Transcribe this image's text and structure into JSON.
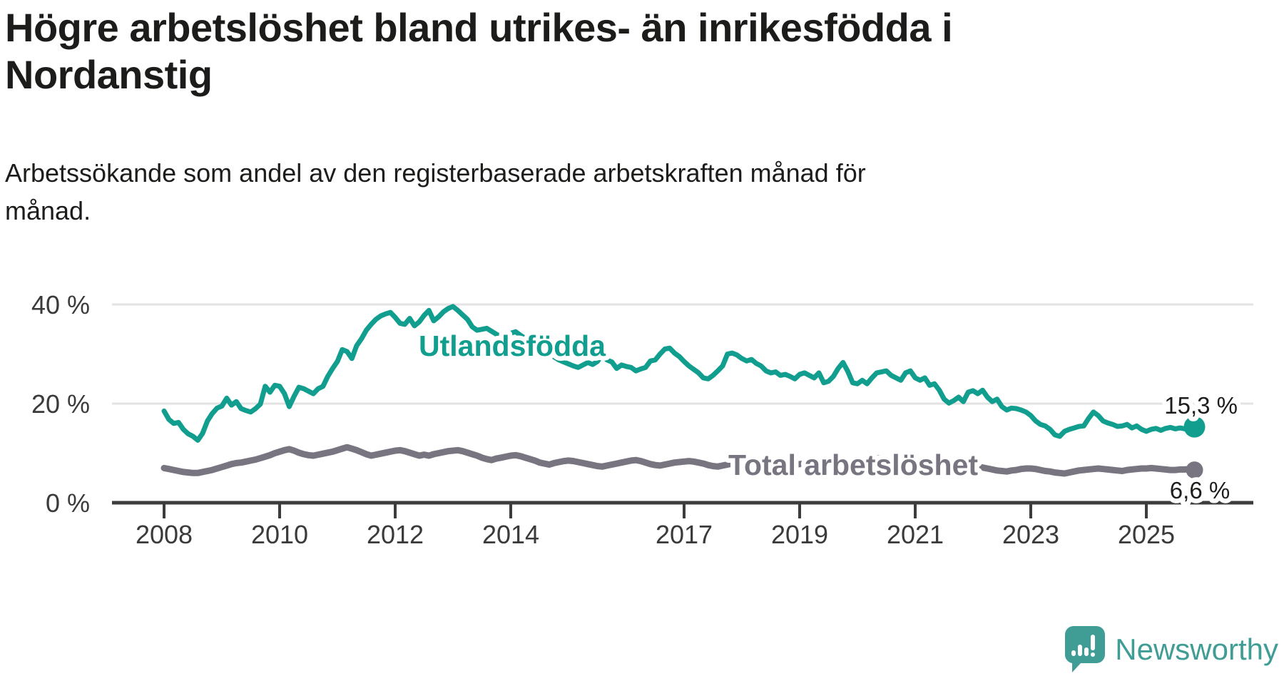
{
  "title_lines": [
    "Högre arbetslöshet bland utrikes- än inrikesfödda i",
    "Nordanstig"
  ],
  "subtitle_lines": [
    "Arbetssökande som andel av den registerbaserade arbetskraften månad för",
    "månad."
  ],
  "colors": {
    "teal": "#119e8f",
    "gray": "#787480",
    "axis": "#3c3c3c",
    "grid": "#e3e3e3",
    "text": "#1d1d1b",
    "logo_teal": "#3f9d95"
  },
  "footer": {
    "brand": "Newsworthy"
  },
  "chart_data": {
    "type": "line",
    "title": "Högre arbetslöshet bland utrikes- än inrikesfödda i Nordanstig",
    "subtitle": "Arbetssökande som andel av den registerbaserade arbetskraften månad för månad.",
    "frequency": "monthly",
    "x_start_year": 2008,
    "x_end_year": 2025.92,
    "x_tick_years": [
      2008,
      2010,
      2012,
      2014,
      2017,
      2019,
      2021,
      2023,
      2025
    ],
    "x_tick_labels": [
      "2008",
      "2010",
      "2012",
      "2014",
      "2017",
      "2019",
      "2021",
      "2023",
      "2025"
    ],
    "ylim": [
      0,
      42
    ],
    "grid": "horizontal-only",
    "legend_position": "inline-on-line",
    "y_ticks": [
      {
        "value": 0,
        "label": "0 %"
      },
      {
        "value": 20,
        "label": "20 %"
      },
      {
        "value": 40,
        "label": "40 %"
      }
    ],
    "series": [
      {
        "name": "Utlandsfödda",
        "color": "#119e8f",
        "end_label": "15,3 %",
        "end_value": 15.3,
        "values": [
          18.5,
          16.8,
          16.0,
          16.2,
          14.8,
          13.9,
          13.4,
          12.6,
          14.0,
          16.5,
          18.0,
          19.1,
          19.5,
          21.1,
          19.7,
          20.4,
          19.0,
          18.6,
          18.3,
          19.0,
          19.9,
          23.5,
          22.3,
          23.7,
          23.5,
          22.0,
          19.4,
          21.5,
          23.3,
          23.0,
          22.5,
          22.0,
          23.0,
          23.5,
          25.5,
          27.1,
          28.5,
          30.9,
          30.5,
          29.1,
          31.7,
          33.1,
          34.8,
          36.0,
          37.0,
          37.7,
          38.1,
          38.4,
          37.4,
          36.2,
          36.0,
          37.2,
          35.7,
          36.5,
          37.8,
          38.8,
          36.7,
          37.5,
          38.5,
          39.2,
          39.6,
          38.8,
          37.9,
          37.0,
          35.5,
          34.8,
          35.0,
          35.2,
          34.6,
          34.0,
          33.5,
          33.8,
          34.2,
          34.5,
          33.8,
          33.2,
          32.5,
          31.8,
          31.2,
          30.6,
          30.0,
          29.4,
          28.8,
          28.4,
          28.0,
          27.6,
          27.3,
          27.8,
          28.3,
          27.9,
          28.5,
          29.8,
          28.8,
          28.4,
          27.1,
          27.8,
          27.5,
          27.3,
          26.6,
          27.0,
          27.3,
          28.6,
          28.8,
          30.0,
          31.0,
          31.2,
          30.2,
          29.5,
          28.5,
          27.6,
          26.9,
          26.2,
          25.2,
          25.0,
          25.7,
          26.6,
          27.6,
          30.0,
          30.2,
          29.8,
          29.1,
          28.6,
          28.9,
          28.1,
          27.6,
          26.6,
          26.2,
          26.4,
          25.7,
          25.9,
          25.5,
          25.0,
          25.9,
          26.2,
          25.7,
          25.2,
          26.2,
          24.2,
          24.5,
          25.5,
          27.1,
          28.3,
          26.5,
          24.2,
          24.0,
          24.7,
          24.0,
          25.2,
          26.2,
          26.4,
          26.6,
          25.7,
          25.2,
          24.7,
          26.2,
          26.6,
          25.2,
          24.7,
          25.2,
          23.7,
          24.0,
          22.7,
          20.9,
          20.1,
          20.6,
          21.3,
          20.4,
          22.3,
          22.6,
          22.0,
          22.7,
          21.3,
          20.4,
          20.9,
          19.4,
          18.7,
          19.1,
          19.0,
          18.7,
          18.3,
          17.6,
          16.5,
          15.8,
          15.5,
          14.8,
          13.7,
          13.4,
          14.4,
          14.8,
          15.1,
          15.4,
          15.5,
          17.0,
          18.3,
          17.6,
          16.5,
          16.1,
          15.8,
          15.4,
          15.5,
          15.8,
          15.1,
          15.5,
          14.8,
          14.4,
          14.8,
          15.0,
          14.6,
          15.0,
          15.2,
          14.9,
          15.1,
          14.9,
          15.0,
          15.3
        ]
      },
      {
        "name": "Total arbetslöshet",
        "color": "#787480",
        "end_label": "6,6 %",
        "end_value": 6.6,
        "values": [
          7.0,
          6.8,
          6.6,
          6.4,
          6.2,
          6.1,
          6.0,
          6.0,
          6.2,
          6.4,
          6.6,
          6.9,
          7.2,
          7.5,
          7.8,
          8.0,
          8.1,
          8.3,
          8.5,
          8.7,
          9.0,
          9.3,
          9.6,
          10.0,
          10.3,
          10.6,
          10.8,
          10.5,
          10.1,
          9.8,
          9.6,
          9.5,
          9.7,
          9.9,
          10.1,
          10.3,
          10.6,
          10.9,
          11.2,
          10.9,
          10.6,
          10.2,
          9.8,
          9.5,
          9.7,
          9.9,
          10.1,
          10.3,
          10.5,
          10.6,
          10.4,
          10.1,
          9.8,
          9.5,
          9.7,
          9.5,
          9.8,
          10.0,
          10.2,
          10.4,
          10.5,
          10.6,
          10.4,
          10.1,
          9.8,
          9.5,
          9.1,
          8.8,
          8.6,
          8.9,
          9.1,
          9.3,
          9.5,
          9.6,
          9.4,
          9.1,
          8.8,
          8.5,
          8.1,
          7.9,
          7.7,
          8.0,
          8.2,
          8.4,
          8.5,
          8.4,
          8.2,
          8.0,
          7.8,
          7.6,
          7.4,
          7.3,
          7.5,
          7.7,
          7.9,
          8.1,
          8.3,
          8.5,
          8.6,
          8.4,
          8.1,
          7.8,
          7.6,
          7.5,
          7.7,
          7.9,
          8.1,
          8.2,
          8.3,
          8.4,
          8.3,
          8.1,
          7.9,
          7.6,
          7.4,
          7.3,
          7.5,
          7.7,
          7.9,
          8.0,
          8.1,
          8.2,
          8.1,
          7.9,
          7.6,
          7.3,
          7.1,
          7.0,
          7.2,
          7.4,
          7.6,
          7.7,
          7.8,
          7.9,
          7.8,
          7.6,
          7.4,
          7.2,
          7.1,
          7.0,
          7.2,
          7.4,
          7.6,
          7.8,
          8.0,
          8.2,
          8.5,
          8.7,
          8.9,
          9.0,
          8.9,
          8.7,
          8.5,
          8.3,
          8.1,
          8.0,
          8.1,
          8.2,
          8.1,
          7.9,
          7.6,
          7.3,
          7.1,
          6.9,
          7.0,
          7.2,
          7.3,
          7.4,
          7.4,
          7.3,
          7.1,
          6.9,
          6.7,
          6.5,
          6.4,
          6.3,
          6.5,
          6.6,
          6.8,
          6.9,
          6.9,
          6.8,
          6.6,
          6.4,
          6.3,
          6.1,
          6.0,
          5.9,
          6.1,
          6.3,
          6.5,
          6.6,
          6.7,
          6.8,
          6.9,
          6.8,
          6.7,
          6.6,
          6.5,
          6.4,
          6.6,
          6.7,
          6.8,
          6.9,
          6.9,
          7.0,
          6.9,
          6.8,
          6.7,
          6.6,
          6.6,
          6.7,
          6.7,
          6.8,
          6.6
        ]
      }
    ]
  }
}
